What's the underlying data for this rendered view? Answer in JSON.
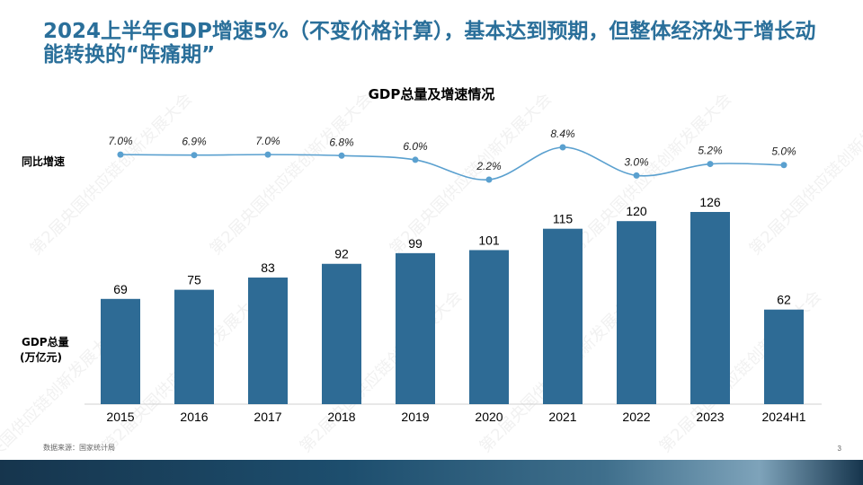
{
  "slide": {
    "title": "2024上半年GDP增速5%（不变价格计算），基本达到预期，但整体经济处于增长动能转换的“阵痛期”",
    "source": "数据来源：国家统计局",
    "page_number": "3",
    "watermark": "第2届央国供应链创新发展大会"
  },
  "chart_data": {
    "type": "bar+line",
    "title": "GDP总量及增速情况",
    "categories": [
      "2015",
      "2016",
      "2017",
      "2018",
      "2019",
      "2020",
      "2021",
      "2022",
      "2023",
      "2024H1"
    ],
    "series": [
      {
        "name": "GDP总量(万亿元)",
        "type": "bar",
        "color": "#2e6b95",
        "values": [
          69,
          75,
          83,
          92,
          99,
          101,
          115,
          120,
          126,
          62
        ],
        "labels": [
          "69",
          "75",
          "83",
          "92",
          "99",
          "101",
          "115",
          "120",
          "126",
          "62"
        ]
      },
      {
        "name": "同比增速",
        "type": "line",
        "color": "#5aa0cf",
        "values": [
          7.0,
          6.9,
          7.0,
          6.8,
          6.0,
          2.2,
          8.4,
          3.0,
          5.2,
          5.0
        ],
        "labels": [
          "7.0%",
          "6.9%",
          "7.0%",
          "6.8%",
          "6.0%",
          "2.2%",
          "8.4%",
          "3.0%",
          "5.2%",
          "5.0%"
        ]
      }
    ],
    "row_labels": {
      "line": "同比增速",
      "bar_line1": "GDP总量",
      "bar_line2": "(万亿元)"
    },
    "ylim_bar": [
      0,
      140
    ],
    "ylim_line": [
      0,
      10
    ],
    "grid": false,
    "legend": "none"
  }
}
